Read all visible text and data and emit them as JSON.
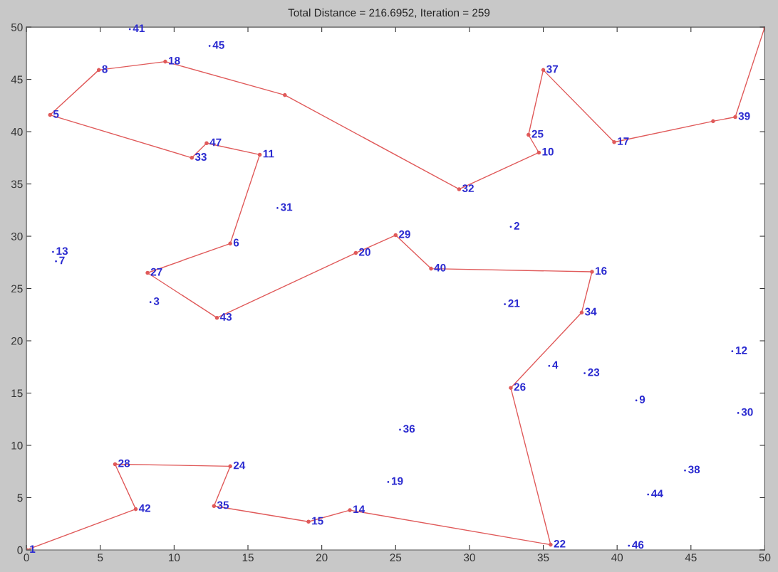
{
  "chart_data": {
    "type": "line",
    "title": "Total Distance = 216.6952, Iteration = 259",
    "xlim": [
      0,
      50
    ],
    "ylim": [
      0,
      50
    ],
    "xticks": [
      0,
      5,
      10,
      15,
      20,
      25,
      30,
      35,
      40,
      45,
      50
    ],
    "yticks": [
      0,
      5,
      10,
      15,
      20,
      25,
      30,
      35,
      40,
      45,
      50
    ],
    "grid": false,
    "legend": false,
    "marker": "circle",
    "line_style": "solid",
    "series": [
      {
        "color": "#e05a5a",
        "x": [
          0,
          7.4,
          6.0,
          13.8,
          12.7,
          19.1,
          21.9,
          35.5,
          32.8,
          37.6,
          38.3,
          27.4,
          25.0,
          22.3,
          12.9,
          8.2,
          13.8,
          15.8,
          12.2,
          11.2,
          1.6,
          4.9,
          9.4,
          17.5,
          29.3,
          34.7,
          34.0,
          35.0,
          39.8,
          46.5,
          48.0,
          50
        ],
        "values": [
          0,
          3.9,
          8.2,
          8.0,
          4.2,
          2.7,
          3.8,
          0.5,
          15.5,
          22.7,
          26.6,
          26.9,
          30.1,
          28.4,
          22.2,
          26.5,
          29.3,
          37.8,
          38.9,
          37.5,
          41.6,
          45.9,
          46.7,
          43.5,
          34.5,
          38.0,
          39.7,
          45.9,
          39.0,
          41.0,
          41.4,
          50
        ]
      },
      {
        "type": "scatter",
        "color": "#2b2bd0",
        "x": [
          7.0,
          12.4,
          17.0,
          1.8,
          2.0,
          8.4,
          32.8,
          32.4,
          35.4,
          37.8,
          47.8,
          41.3,
          48.2,
          25.3,
          24.5,
          44.6,
          42.1,
          40.8
        ],
        "values": [
          49.8,
          48.2,
          32.7,
          28.5,
          27.6,
          23.7,
          30.9,
          23.5,
          17.6,
          16.9,
          19.0,
          14.3,
          13.1,
          11.5,
          6.5,
          7.6,
          5.3,
          0.4
        ]
      }
    ],
    "annotations": [
      {
        "text": "1",
        "x": 0,
        "y": 0
      },
      {
        "text": "42",
        "x": 7.4,
        "y": 3.9
      },
      {
        "text": "28",
        "x": 6.0,
        "y": 8.2
      },
      {
        "text": "24",
        "x": 13.8,
        "y": 8.0
      },
      {
        "text": "35",
        "x": 12.7,
        "y": 4.2
      },
      {
        "text": "15",
        "x": 19.1,
        "y": 2.7
      },
      {
        "text": "14",
        "x": 21.9,
        "y": 3.8
      },
      {
        "text": "22",
        "x": 35.5,
        "y": 0.5
      },
      {
        "text": "26",
        "x": 32.8,
        "y": 15.5
      },
      {
        "text": "34",
        "x": 37.6,
        "y": 22.7
      },
      {
        "text": "16",
        "x": 38.3,
        "y": 26.6
      },
      {
        "text": "40",
        "x": 27.4,
        "y": 26.9
      },
      {
        "text": "29",
        "x": 25.0,
        "y": 30.1
      },
      {
        "text": "20",
        "x": 22.3,
        "y": 28.4
      },
      {
        "text": "43",
        "x": 12.9,
        "y": 22.2
      },
      {
        "text": "27",
        "x": 8.2,
        "y": 26.5
      },
      {
        "text": "6",
        "x": 13.8,
        "y": 29.3
      },
      {
        "text": "11",
        "x": 15.8,
        "y": 37.8
      },
      {
        "text": "47",
        "x": 12.2,
        "y": 38.9
      },
      {
        "text": "33",
        "x": 11.2,
        "y": 37.5
      },
      {
        "text": "5",
        "x": 1.6,
        "y": 41.6
      },
      {
        "text": "8",
        "x": 4.9,
        "y": 45.9
      },
      {
        "text": "18",
        "x": 9.4,
        "y": 46.7
      },
      {
        "text": "32",
        "x": 29.3,
        "y": 34.5
      },
      {
        "text": "10",
        "x": 34.7,
        "y": 38.0
      },
      {
        "text": "25",
        "x": 34.0,
        "y": 39.7
      },
      {
        "text": "37",
        "x": 35.0,
        "y": 45.9
      },
      {
        "text": "17",
        "x": 39.8,
        "y": 39.0
      },
      {
        "text": "39",
        "x": 48.0,
        "y": 41.4
      },
      {
        "text": "41",
        "x": 7.0,
        "y": 49.8
      },
      {
        "text": "45",
        "x": 12.4,
        "y": 48.2
      },
      {
        "text": "31",
        "x": 17.0,
        "y": 32.7
      },
      {
        "text": "13",
        "x": 1.8,
        "y": 28.5
      },
      {
        "text": "7",
        "x": 2.0,
        "y": 27.6
      },
      {
        "text": "3",
        "x": 8.4,
        "y": 23.7
      },
      {
        "text": "2",
        "x": 32.8,
        "y": 30.9
      },
      {
        "text": "21",
        "x": 32.4,
        "y": 23.5
      },
      {
        "text": "4",
        "x": 35.4,
        "y": 17.6
      },
      {
        "text": "23",
        "x": 37.8,
        "y": 16.9
      },
      {
        "text": "12",
        "x": 47.8,
        "y": 19.0
      },
      {
        "text": "9",
        "x": 41.3,
        "y": 14.3
      },
      {
        "text": "30",
        "x": 48.2,
        "y": 13.1
      },
      {
        "text": "36",
        "x": 25.3,
        "y": 11.5
      },
      {
        "text": "19",
        "x": 24.5,
        "y": 6.5
      },
      {
        "text": "38",
        "x": 44.6,
        "y": 7.6
      },
      {
        "text": "44",
        "x": 42.1,
        "y": 5.3
      },
      {
        "text": "46",
        "x": 40.8,
        "y": 0.4
      }
    ]
  }
}
